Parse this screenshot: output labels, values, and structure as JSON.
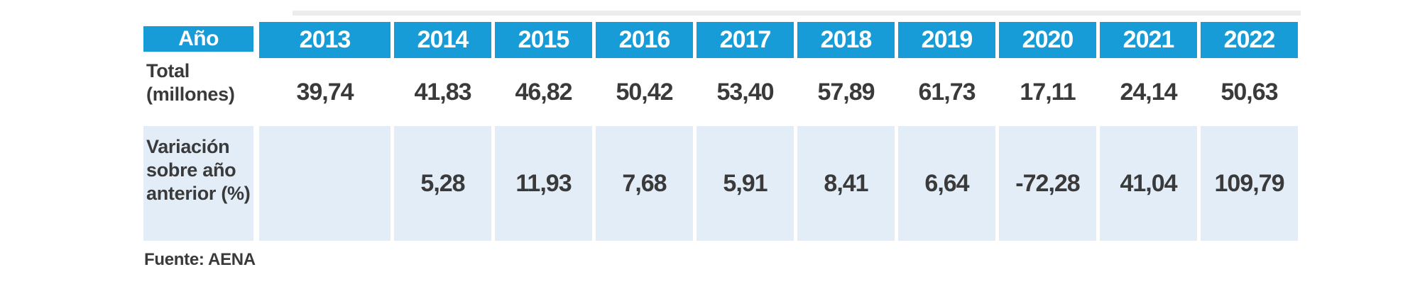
{
  "document": {
    "table": {
      "corner_label": "Año",
      "row_labels": {
        "total": {
          "line1": "Total",
          "line2": "(millones)"
        },
        "variacion": {
          "line1": "Variación",
          "line2": "sobre año",
          "line3": "anterior (%)"
        }
      },
      "columns": [
        {
          "year": "2013",
          "total": "39,74",
          "variacion": ""
        },
        {
          "year": "2014",
          "total": "41,83",
          "variacion": "5,28"
        },
        {
          "year": "2015",
          "total": "46,82",
          "variacion": "11,93"
        },
        {
          "year": "2016",
          "total": "50,42",
          "variacion": "7,68"
        },
        {
          "year": "2017",
          "total": "53,40",
          "variacion": "5,91"
        },
        {
          "year": "2018",
          "total": "57,89",
          "variacion": "8,41"
        },
        {
          "year": "2019",
          "total": "61,73",
          "variacion": "6,64"
        },
        {
          "year": "2020",
          "total": "17,11",
          "variacion": "-72,28"
        },
        {
          "year": "2021",
          "total": "24,14",
          "variacion": "41,04"
        },
        {
          "year": "2022",
          "total": "50,63",
          "variacion": "109,79"
        }
      ]
    },
    "source_note": "Fuente: AENA",
    "colors": {
      "header_blue": "#189cd8",
      "row_light_blue": "#e3edf8",
      "text_dark": "#3a3a3a"
    }
  }
}
